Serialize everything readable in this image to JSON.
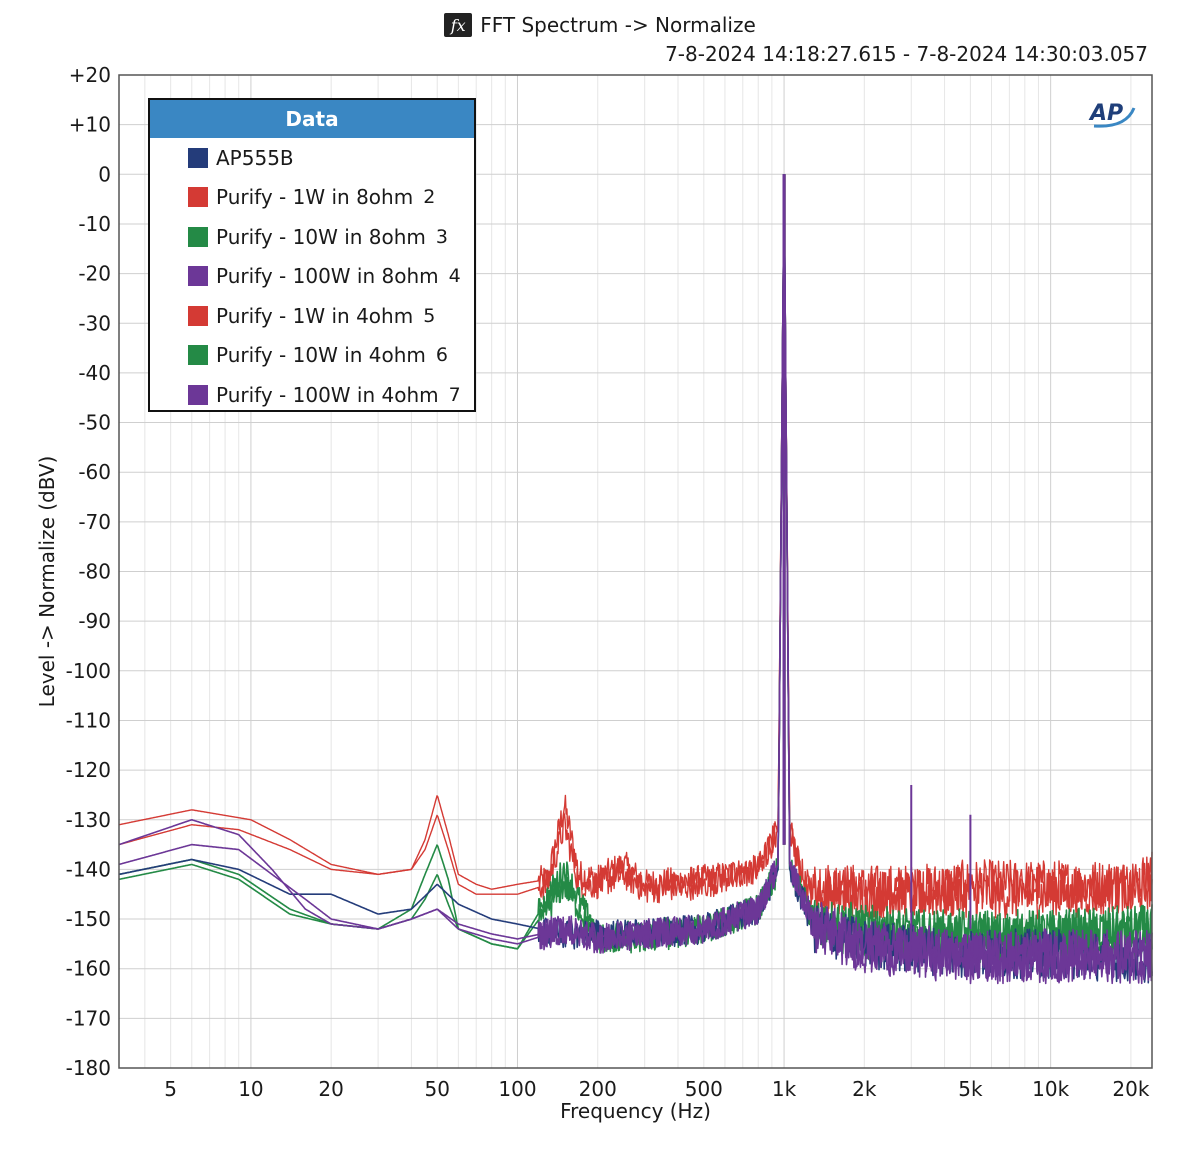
{
  "header": {
    "title": "FFT Spectrum -> Normalize",
    "fx_icon": "fx",
    "subtitle": "7-8-2024 14:18:27.615 - 7-8-2024 14:30:03.057",
    "logo_text": "AP"
  },
  "legend": {
    "header": "Data",
    "items": [
      {
        "label": "AP555B",
        "index": "",
        "color": "#243c7a"
      },
      {
        "label": "Purify - 1W in 8ohm",
        "index": "2",
        "color": "#d43a34"
      },
      {
        "label": "Purify - 10W in 8ohm",
        "index": "3",
        "color": "#248a46"
      },
      {
        "label": "Purify - 100W in 8ohm",
        "index": "4",
        "color": "#6c3797"
      },
      {
        "label": "Purify - 1W in 4ohm",
        "index": "5",
        "color": "#d43a34"
      },
      {
        "label": "Purify - 10W in 4ohm",
        "index": "6",
        "color": "#248a46"
      },
      {
        "label": "Purify - 100W in 4ohm",
        "index": "7",
        "color": "#6c3797"
      }
    ]
  },
  "chart_data": {
    "type": "line",
    "title": "FFT Spectrum -> Normalize",
    "xlabel": "Frequency (Hz)",
    "ylabel": "Level -> Normalize (dBV)",
    "x_scale": "log",
    "xlim": [
      3.2,
      24000
    ],
    "ylim": [
      -180,
      20
    ],
    "grid": true,
    "legend_position": "top-left",
    "x_ticks": [
      {
        "value": 5,
        "label": "5"
      },
      {
        "value": 10,
        "label": "10"
      },
      {
        "value": 20,
        "label": "20"
      },
      {
        "value": 50,
        "label": "50"
      },
      {
        "value": 100,
        "label": "100"
      },
      {
        "value": 200,
        "label": "200"
      },
      {
        "value": 500,
        "label": "500"
      },
      {
        "value": 1000,
        "label": "1k"
      },
      {
        "value": 2000,
        "label": "2k"
      },
      {
        "value": 5000,
        "label": "5k"
      },
      {
        "value": 10000,
        "label": "10k"
      },
      {
        "value": 20000,
        "label": "20k"
      }
    ],
    "y_ticks": [
      {
        "value": 20,
        "label": "+20"
      },
      {
        "value": 10,
        "label": "+10"
      },
      {
        "value": 0,
        "label": "0"
      },
      {
        "value": -10,
        "label": "-10"
      },
      {
        "value": -20,
        "label": "-20"
      },
      {
        "value": -30,
        "label": "-30"
      },
      {
        "value": -40,
        "label": "-40"
      },
      {
        "value": -50,
        "label": "-50"
      },
      {
        "value": -60,
        "label": "-60"
      },
      {
        "value": -70,
        "label": "-70"
      },
      {
        "value": -80,
        "label": "-80"
      },
      {
        "value": -90,
        "label": "-90"
      },
      {
        "value": -100,
        "label": "-100"
      },
      {
        "value": -110,
        "label": "-110"
      },
      {
        "value": -120,
        "label": "-120"
      },
      {
        "value": -130,
        "label": "-130"
      },
      {
        "value": -140,
        "label": "-140"
      },
      {
        "value": -150,
        "label": "-150"
      },
      {
        "value": -160,
        "label": "-160"
      },
      {
        "value": -170,
        "label": "-170"
      },
      {
        "value": -180,
        "label": "-180"
      }
    ],
    "series": [
      {
        "name": "AP555B",
        "color": "#243c7a",
        "x": [
          3.2,
          6,
          9,
          14,
          20,
          30,
          40,
          50,
          60,
          80,
          100,
          150,
          200,
          300,
          500,
          800,
          950,
          1000,
          1050,
          1300,
          2000,
          3000,
          5000,
          10000,
          24000
        ],
        "y": [
          -141,
          -138,
          -140,
          -145,
          -145,
          -149,
          -148,
          -143,
          -147,
          -150,
          -151,
          -153,
          -153,
          -153,
          -152,
          -148,
          -140,
          0,
          -140,
          -152,
          -155,
          -156,
          -157,
          -157,
          -158
        ],
        "floor": -156
      },
      {
        "name": "Purify - 1W in 8ohm",
        "color": "#d43a34",
        "x": [
          3.2,
          6,
          10,
          14,
          20,
          30,
          40,
          45,
          50,
          55,
          60,
          70,
          80,
          100,
          130,
          150,
          170,
          200,
          250,
          300,
          500,
          800,
          950,
          1000,
          1050,
          1200,
          2000,
          3000,
          5000,
          10000,
          20000,
          24000
        ],
        "y": [
          -131,
          -128,
          -130,
          -134,
          -139,
          -141,
          -140,
          -134,
          -125,
          -133,
          -141,
          -143,
          -144,
          -143,
          -142,
          -127,
          -141,
          -142,
          -139,
          -143,
          -142,
          -140,
          -132,
          0,
          -132,
          -143,
          -144,
          -144,
          -143,
          -143,
          -143,
          -141
        ],
        "floor": -146
      },
      {
        "name": "Purify - 10W in 8ohm",
        "color": "#248a46",
        "x": [
          3.2,
          6,
          9,
          14,
          20,
          30,
          40,
          45,
          50,
          55,
          60,
          80,
          100,
          150,
          200,
          300,
          500,
          800,
          950,
          1000,
          1050,
          1300,
          2000,
          3000,
          5000,
          10000,
          24000
        ],
        "y": [
          -141,
          -138,
          -141,
          -148,
          -151,
          -152,
          -148,
          -141,
          -135,
          -142,
          -152,
          -155,
          -156,
          -140,
          -154,
          -153,
          -152,
          -148,
          -140,
          0,
          -140,
          -150,
          -152,
          -153,
          -153,
          -153,
          -152
        ],
        "floor": -152
      },
      {
        "name": "Purify - 100W in 8ohm",
        "color": "#6c3797",
        "x": [
          3.2,
          6,
          9,
          12,
          16,
          20,
          30,
          40,
          50,
          60,
          80,
          100,
          150,
          200,
          300,
          500,
          800,
          950,
          1000,
          1050,
          1300,
          2000,
          3000,
          5000,
          10000,
          24000
        ],
        "y": [
          -135,
          -130,
          -133,
          -140,
          -148,
          -151,
          -152,
          -150,
          -148,
          -152,
          -154,
          -155,
          -152,
          -154,
          -153,
          -152,
          -148,
          -139,
          0,
          -139,
          -151,
          -155,
          -156,
          -157,
          -157,
          -157
        ],
        "floor": -156
      },
      {
        "name": "Purify - 1W in 4ohm",
        "color": "#d43a34",
        "x": [
          3.2,
          6,
          9,
          14,
          20,
          30,
          40,
          45,
          50,
          55,
          60,
          70,
          80,
          100,
          130,
          150,
          170,
          200,
          250,
          300,
          500,
          800,
          950,
          1000,
          1050,
          1200,
          2000,
          3000,
          5000,
          10000,
          20000,
          24000
        ],
        "y": [
          -135,
          -131,
          -132,
          -136,
          -140,
          -141,
          -140,
          -136,
          -129,
          -136,
          -143,
          -145,
          -145,
          -145,
          -143,
          -131,
          -143,
          -143,
          -141,
          -144,
          -143,
          -140,
          -132,
          0,
          -132,
          -144,
          -145,
          -145,
          -145,
          -145,
          -144,
          -143
        ],
        "floor": -147
      },
      {
        "name": "Purify - 10W in 4ohm",
        "color": "#248a46",
        "x": [
          3.2,
          6,
          9,
          14,
          20,
          30,
          40,
          45,
          50,
          55,
          60,
          80,
          100,
          150,
          200,
          300,
          500,
          800,
          950,
          1000,
          1050,
          1300,
          2000,
          3000,
          5000,
          10000,
          24000
        ],
        "y": [
          -142,
          -139,
          -142,
          -149,
          -151,
          -152,
          -150,
          -146,
          -141,
          -147,
          -152,
          -155,
          -156,
          -143,
          -154,
          -154,
          -152,
          -148,
          -140,
          0,
          -140,
          -151,
          -153,
          -154,
          -154,
          -154,
          -153
        ],
        "floor": -153
      },
      {
        "name": "Purify - 100W in 4ohm",
        "color": "#6c3797",
        "x": [
          3.2,
          6,
          9,
          12,
          16,
          20,
          30,
          40,
          50,
          60,
          80,
          100,
          150,
          200,
          300,
          500,
          800,
          950,
          1000,
          1050,
          1300,
          2000,
          3000,
          5000,
          10000,
          24000
        ],
        "y": [
          -139,
          -135,
          -136,
          -141,
          -146,
          -150,
          -152,
          -150,
          -148,
          -151,
          -153,
          -154,
          -152,
          -154,
          -153,
          -152,
          -148,
          -139,
          0,
          -139,
          -152,
          -156,
          -157,
          -158,
          -158,
          -158
        ],
        "floor": -157
      }
    ],
    "harmonic_spikes": [
      {
        "x": 3000,
        "y": -123
      },
      {
        "x": 5000,
        "y": -129
      }
    ]
  }
}
